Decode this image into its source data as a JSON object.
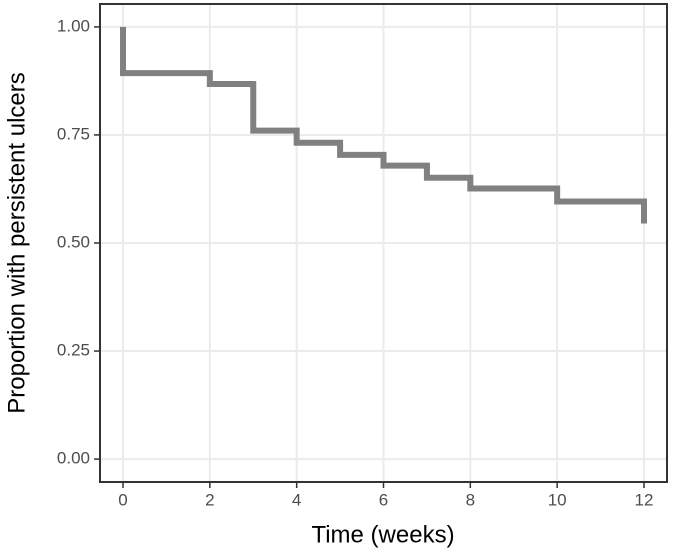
{
  "chart_data": {
    "type": "step",
    "x_label": "Time (weeks)",
    "y_label": "Proportion with persistent ulcers",
    "x": [
      0,
      0,
      2,
      3,
      4,
      5,
      6,
      7,
      8,
      10,
      12
    ],
    "series": [
      {
        "color": "#808080",
        "values": [
          1.0,
          0.893,
          0.868,
          0.76,
          0.732,
          0.704,
          0.679,
          0.651,
          0.626,
          0.596,
          0.545
        ]
      }
    ],
    "xlim": [
      -0.53,
      12.53
    ],
    "ylim": [
      -0.053,
      1.053
    ],
    "xticks": [
      0,
      2,
      4,
      6,
      8,
      10,
      12
    ],
    "yticks": [
      {
        "value": 0,
        "label": "0.00"
      },
      {
        "value": 0.25,
        "label": "0.25"
      },
      {
        "value": 0.5,
        "label": "0.50"
      },
      {
        "value": 0.75,
        "label": "0.75"
      },
      {
        "value": 1,
        "label": "1.00"
      }
    ],
    "grid": true
  }
}
